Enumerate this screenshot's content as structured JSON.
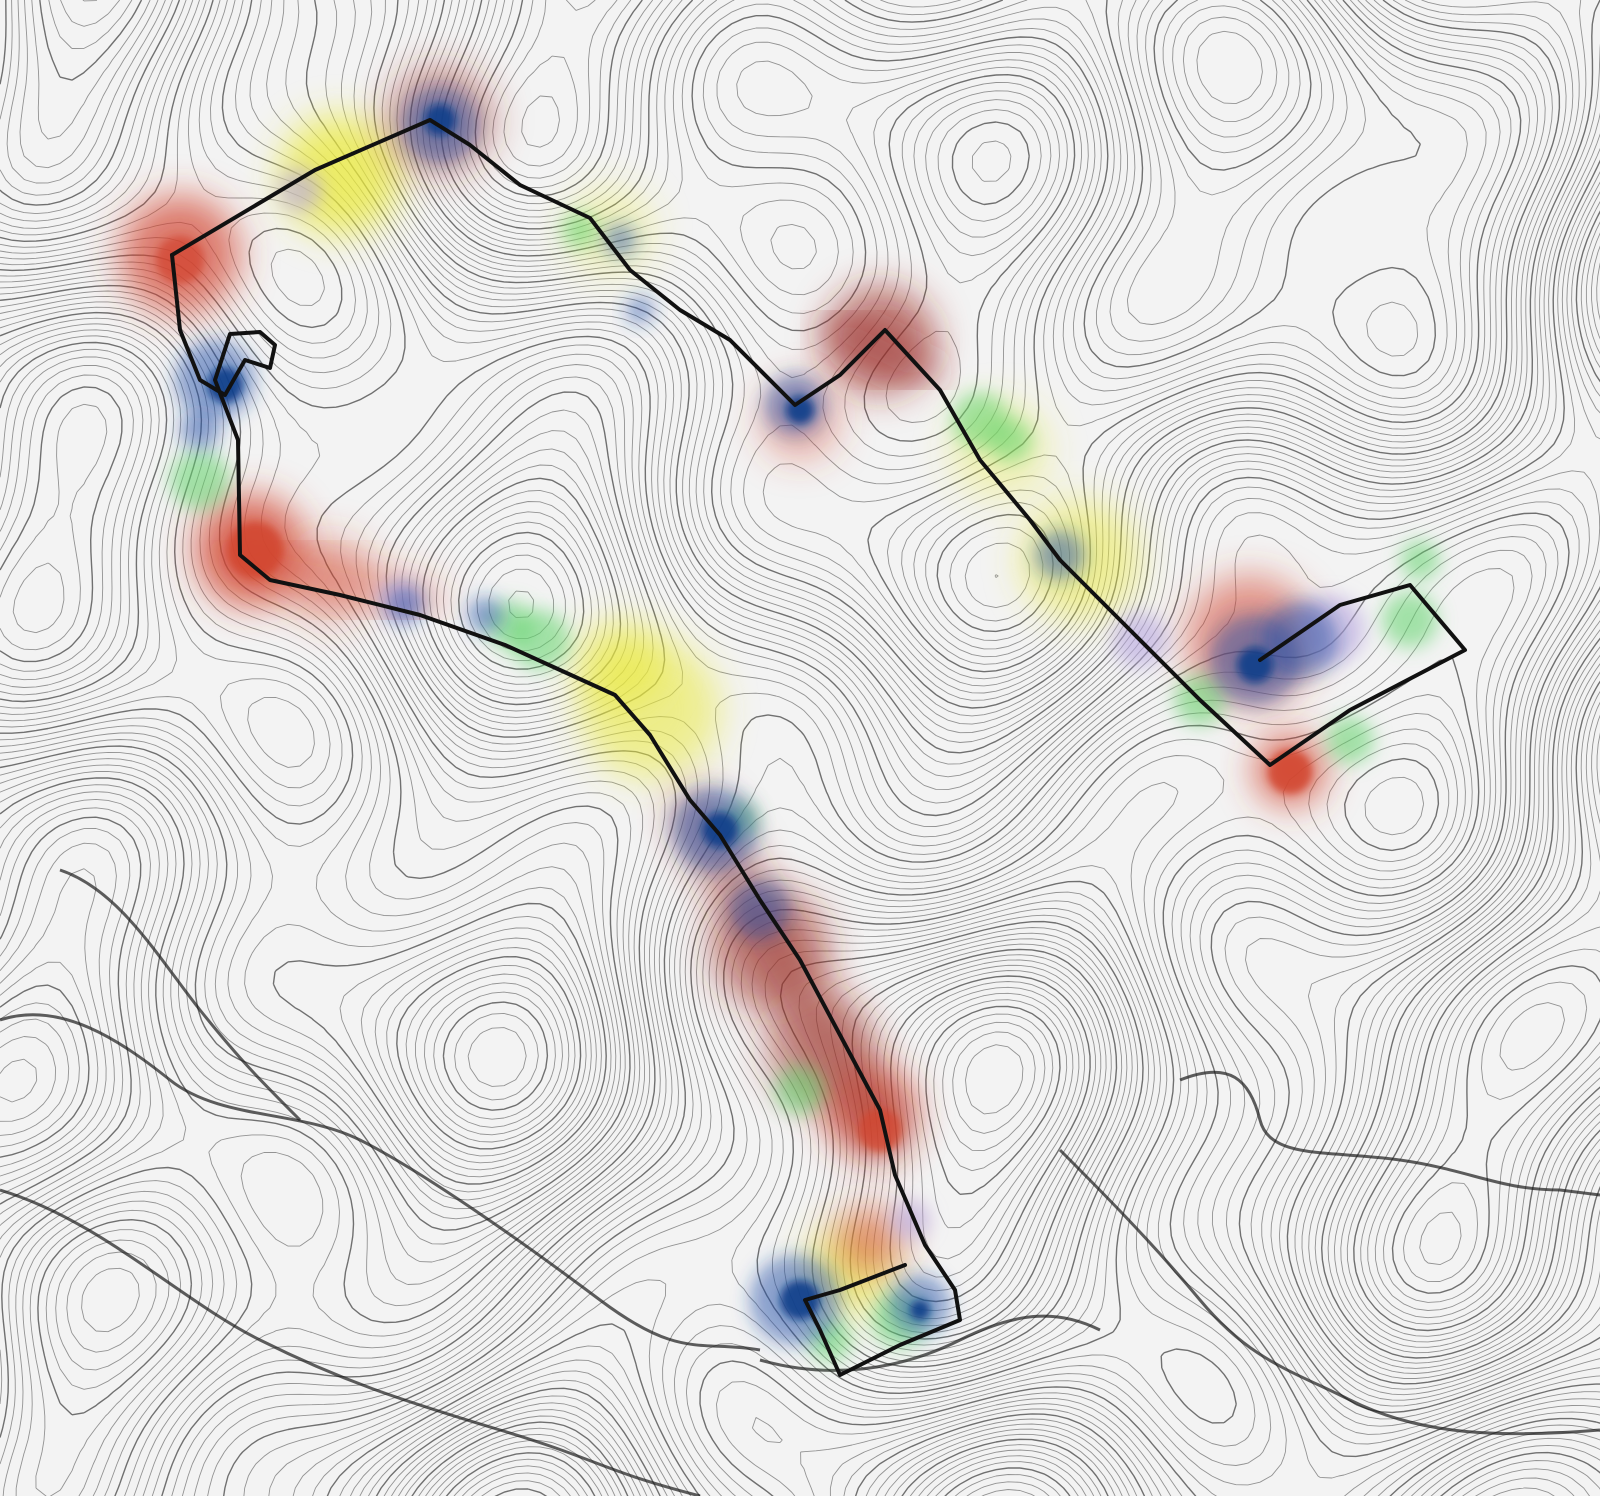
{
  "map": {
    "kind": "topographic contour map with track",
    "background_color": "#f3f3f3",
    "contour_color": "#444444",
    "track_color": "#111111",
    "heat_colors": {
      "blue": "#1f4fa8",
      "deep_blue": "#0d3d8a",
      "red": "#d2442e",
      "dark_red": "#9a2a22",
      "yellow": "#e9ea3a",
      "green": "#5fd46a",
      "lavender": "#b7a6e0"
    },
    "legend": null,
    "labels": []
  }
}
